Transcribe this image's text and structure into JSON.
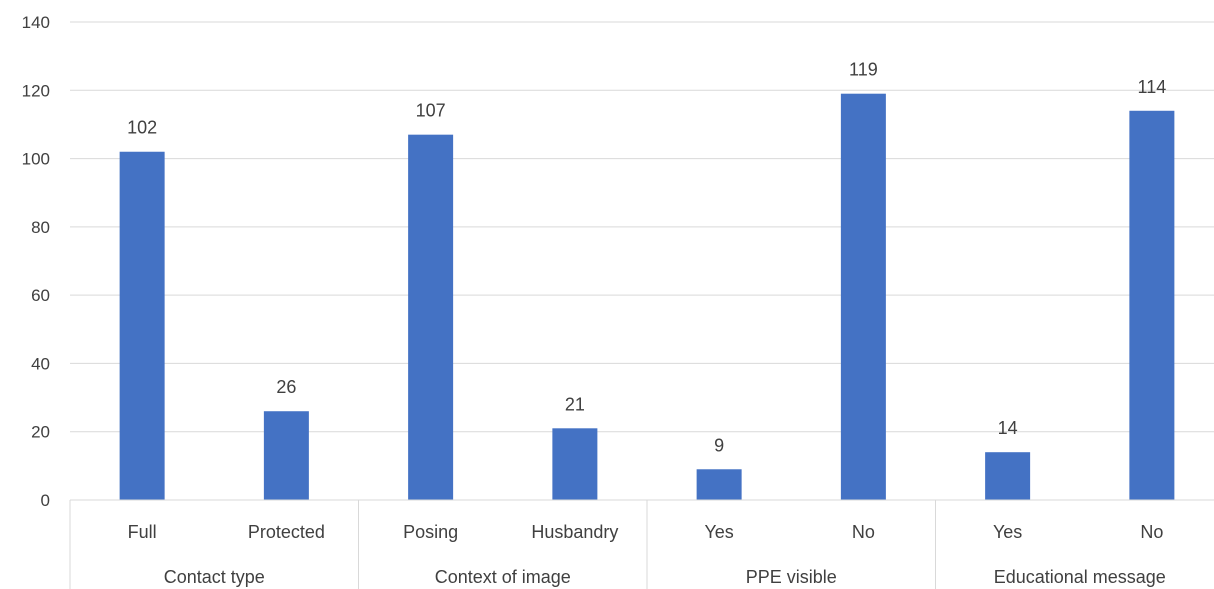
{
  "chart_data": {
    "type": "bar",
    "title": "",
    "xlabel": "",
    "ylabel": "",
    "ylim": [
      0,
      140
    ],
    "yticks": [
      "0",
      "20",
      "40",
      "60",
      "80",
      "100",
      "120",
      "140"
    ],
    "grid": true,
    "legend": "none",
    "bar_color": "#4472C4",
    "groups": [
      {
        "label": "Contact type",
        "categories": [
          "Full",
          "Protected"
        ],
        "values": [
          102,
          26
        ]
      },
      {
        "label": "Context of image",
        "categories": [
          "Posing",
          "Husbandry"
        ],
        "values": [
          107,
          21
        ]
      },
      {
        "label": "PPE visible",
        "categories": [
          "Yes",
          "No"
        ],
        "values": [
          9,
          119
        ]
      },
      {
        "label": "Educational message",
        "categories": [
          "Yes",
          "No"
        ],
        "values": [
          14,
          114
        ]
      }
    ]
  }
}
